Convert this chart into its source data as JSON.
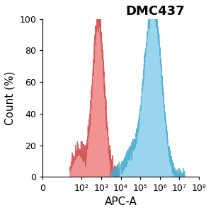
{
  "title": "DMC437",
  "xlabel": "APC-A",
  "ylabel": "Count (%)",
  "ylim": [
    0,
    100
  ],
  "x_ticks": [
    0,
    2,
    3,
    4,
    5,
    6,
    7,
    8
  ],
  "x_tick_labels": [
    "0",
    "10²",
    "10³",
    "10⁴",
    "10⁵",
    "10⁶",
    "10⁷",
    "10⁸"
  ],
  "y_ticks": [
    0,
    20,
    40,
    60,
    80,
    100
  ],
  "red_fill": "#F08080",
  "red_edge": "#D05050",
  "blue_fill": "#87CEEB",
  "blue_edge": "#4AACCF",
  "background": "#FFFFFF",
  "title_fontsize": 13,
  "axis_label_fontsize": 11,
  "tick_fontsize": 9
}
